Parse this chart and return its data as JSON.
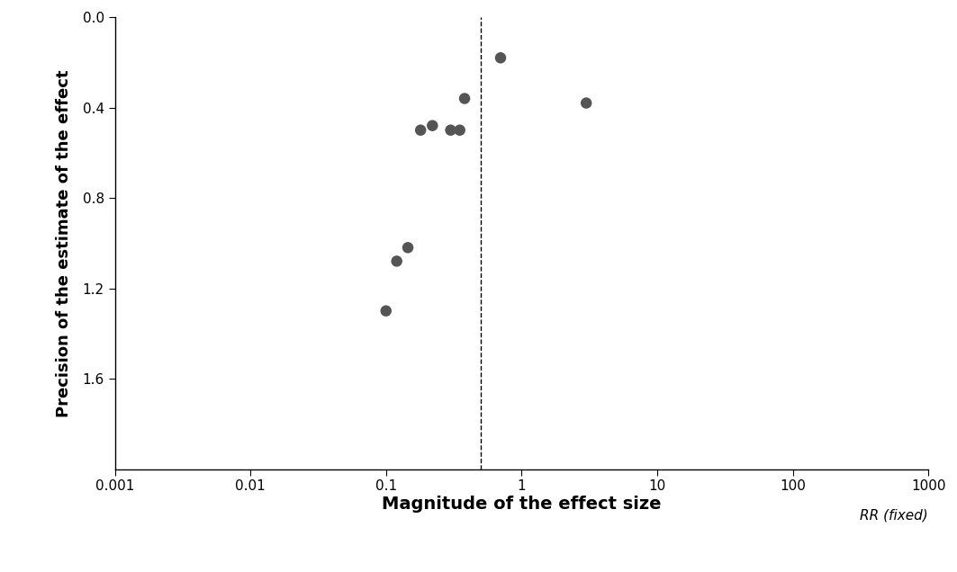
{
  "xlabel": "Magnitude of the effect size",
  "ylabel": "Precision of the estimate of the effect",
  "xlabel2": "RR (fixed)",
  "dot_color": "#555555",
  "dashed_line_x": 0.5,
  "points_x": [
    0.7,
    3.0,
    0.18,
    0.22,
    0.3,
    0.38,
    0.35,
    0.12,
    0.145,
    0.1
  ],
  "points_y": [
    0.18,
    0.38,
    0.5,
    0.48,
    0.5,
    0.36,
    0.5,
    1.08,
    1.02,
    1.3
  ],
  "xmin": 0.001,
  "xmax": 1000,
  "ymin": 0.0,
  "ymax": 2.0,
  "yticks": [
    0.0,
    0.4,
    0.8,
    1.2,
    1.6
  ],
  "xticks": [
    0.001,
    0.01,
    0.1,
    1,
    10,
    100,
    1000
  ],
  "xtick_labels": [
    "0.001",
    "0.01",
    "0.1",
    "1",
    "10",
    "100",
    "1000"
  ],
  "background_color": "#ffffff",
  "marker_size": 9
}
